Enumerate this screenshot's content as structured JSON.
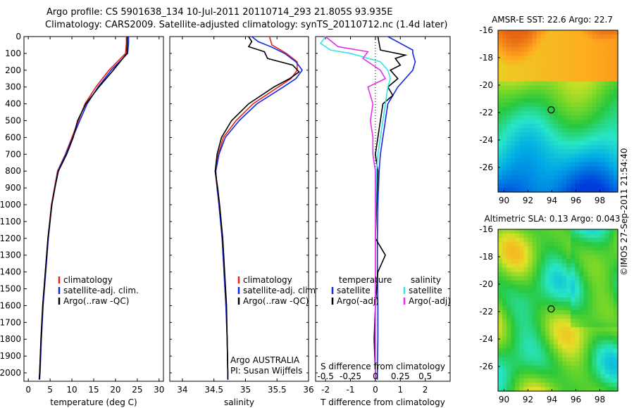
{
  "header": {
    "line1": "Argo profile: CS 5901638_134 10-Jul-2011 20110714_293 21.805S 93.935E",
    "line2": "Climatology: CARS2009. Satellite-adjusted climatology: synTS_20110712.nc (1.4d later)"
  },
  "footer_stamp": "©IMOS 27-Sep-2011 21:54:40",
  "colors": {
    "climatology": "#e8231c",
    "satellite": "#1428e0",
    "argo": "#000000",
    "salinity_satellite": "#33e6e6",
    "salinity_argo": "#e62ee6"
  },
  "chart_data": [
    {
      "type": "line",
      "id": "temperature",
      "xlabel": "temperature (deg C)",
      "ylabel": "",
      "xlim": [
        -1,
        31
      ],
      "ylim": [
        2050,
        0
      ],
      "xticks": [
        "0",
        "5",
        "10",
        "15",
        "20",
        "25",
        "30"
      ],
      "yticks": [
        "0",
        "100",
        "200",
        "300",
        "400",
        "500",
        "600",
        "700",
        "800",
        "900",
        "1000",
        "1100",
        "1200",
        "1300",
        "1400",
        "1500",
        "1600",
        "1700",
        "1800",
        "1900",
        "2000"
      ],
      "legend": [
        "climatology",
        "satellite-adj. clim.",
        "Argo(..raw -QC)"
      ],
      "series": [
        {
          "name": "climatology",
          "depth": [
            0,
            40,
            100,
            200,
            300,
            400,
            500,
            600,
            700,
            800,
            900,
            1000,
            1200,
            1400,
            1600,
            1800,
            2000,
            2040
          ],
          "values": [
            22.5,
            22.5,
            22.3,
            18.5,
            15.5,
            13.0,
            11.5,
            10.0,
            8.5,
            6.7,
            6.0,
            5.3,
            4.5,
            3.9,
            3.3,
            2.9,
            2.6,
            2.5
          ]
        },
        {
          "name": "satellite-adj. clim.",
          "depth": [
            0,
            40,
            100,
            200,
            300,
            400,
            500,
            600,
            700,
            800,
            900,
            1000,
            1200,
            1400,
            1600,
            1800,
            2000,
            2040
          ],
          "values": [
            23.0,
            23.0,
            22.8,
            19.0,
            16.0,
            13.5,
            11.8,
            10.2,
            8.6,
            6.8,
            6.1,
            5.4,
            4.6,
            4.0,
            3.4,
            3.0,
            2.7,
            2.6
          ]
        },
        {
          "name": "Argo(..raw -QC)",
          "depth": [
            0,
            40,
            100,
            200,
            300,
            400,
            500,
            600,
            700,
            800,
            900,
            1000,
            1200,
            1400,
            1600,
            1800,
            2000,
            2040
          ],
          "values": [
            22.7,
            22.7,
            22.6,
            19.5,
            16.2,
            13.2,
            11.3,
            10.3,
            8.8,
            6.9,
            6.1,
            5.4,
            4.5,
            3.9,
            3.3,
            2.9,
            2.6,
            2.5
          ]
        }
      ]
    },
    {
      "type": "line",
      "id": "salinity",
      "xlabel": "salinity",
      "ylabel": "",
      "xlim": [
        33.8,
        36.0
      ],
      "ylim": [
        2050,
        0
      ],
      "xticks": [
        "34",
        "34.5",
        "35",
        "35.5",
        "36"
      ],
      "legend": [
        "climatology",
        "satellite-adj. clim.",
        "Argo(..raw -QC)"
      ],
      "annotation": [
        "Argo AUSTRALIA",
        "PI: Susan Wijffels"
      ],
      "series": [
        {
          "name": "climatology",
          "depth": [
            0,
            50,
            100,
            150,
            200,
            250,
            300,
            400,
            500,
            600,
            700,
            800,
            900,
            1000,
            1200,
            1400,
            1600,
            1800,
            2000,
            2040
          ],
          "values": [
            35.38,
            35.42,
            35.65,
            35.82,
            35.82,
            35.72,
            35.52,
            35.12,
            34.85,
            34.65,
            34.57,
            34.52,
            34.55,
            34.58,
            34.63,
            34.66,
            34.69,
            34.71,
            34.72,
            34.72
          ]
        },
        {
          "name": "satellite-adj. clim.",
          "depth": [
            0,
            30,
            60,
            100,
            150,
            200,
            250,
            300,
            400,
            500,
            600,
            700,
            800,
            900,
            1000,
            1200,
            1400,
            1600,
            1800,
            2000,
            2040
          ],
          "values": [
            35.1,
            35.2,
            35.4,
            35.62,
            35.8,
            35.9,
            35.8,
            35.6,
            35.18,
            34.9,
            34.68,
            34.58,
            34.53,
            34.55,
            34.58,
            34.63,
            34.66,
            34.69,
            34.71,
            34.72,
            34.72
          ]
        },
        {
          "name": "Argo(..raw -QC)",
          "depth": [
            0,
            30,
            60,
            90,
            130,
            170,
            210,
            250,
            300,
            400,
            500,
            600,
            700,
            800,
            900,
            1000,
            1200,
            1400,
            1600,
            1800,
            2000,
            2040
          ],
          "values": [
            35.05,
            35.1,
            35.05,
            35.3,
            35.35,
            35.75,
            35.85,
            35.7,
            35.45,
            35.05,
            34.78,
            34.62,
            34.55,
            34.52,
            34.56,
            34.59,
            34.64,
            34.67,
            34.7,
            34.71,
            34.72,
            34.72
          ]
        }
      ]
    },
    {
      "type": "line",
      "id": "difference",
      "xlabel": "T difference from climatology",
      "xlabel2": "S difference from climatology",
      "xlim": [
        -2.4,
        3.0
      ],
      "ylim": [
        2050,
        0
      ],
      "xticks": [
        "-2",
        "-1",
        "0",
        "1",
        "2"
      ],
      "xticks_top": [
        "-0.5",
        "-0.25",
        "0",
        "0.25",
        "0.5"
      ],
      "legend_temperature": {
        "title": "temperature",
        "items": [
          "satellite",
          "Argo(-adj)"
        ]
      },
      "legend_salinity": {
        "title": "salinity",
        "items": [
          "satellite",
          "Argo(-adj)"
        ]
      },
      "series": [
        {
          "name": "satellite",
          "quantity": "temperature",
          "depth": [
            0,
            40,
            80,
            100,
            150,
            200,
            250,
            300,
            400,
            500,
            600,
            700,
            800,
            1000,
            1200,
            1400,
            1600,
            1800,
            2000,
            2040
          ],
          "values": [
            0.5,
            1.0,
            1.5,
            1.5,
            1.6,
            1.5,
            1.2,
            0.9,
            0.5,
            0.4,
            0.3,
            0.2,
            0.15,
            0.1,
            0.08,
            0.08,
            0.1,
            0.1,
            0.08,
            0.08
          ]
        },
        {
          "name": "Argo(-adj)",
          "quantity": "temperature",
          "depth": [
            0,
            80,
            110,
            130,
            170,
            200,
            250,
            300,
            350,
            400,
            500,
            600,
            700,
            800,
            1000,
            1200,
            1300,
            1400,
            1600,
            1800,
            2000,
            2040
          ],
          "values": [
            0.1,
            0.2,
            1.2,
            0.8,
            1.0,
            0.6,
            0.9,
            0.5,
            0.7,
            0.3,
            0.2,
            0.1,
            0.0,
            0.1,
            0.05,
            0.0,
            0.4,
            0.1,
            0.0,
            -0.05,
            0.0,
            0.0
          ]
        },
        {
          "name": "satellite",
          "quantity": "salinity",
          "depth": [
            0,
            40,
            80,
            100,
            150,
            200,
            250,
            300,
            400,
            500,
            600,
            700,
            800,
            1000,
            1200,
            1400,
            1600,
            1800,
            2000,
            2040
          ],
          "values": [
            -2.0,
            -2.2,
            -1.8,
            -1.0,
            0.2,
            0.5,
            0.6,
            0.5,
            0.4,
            0.3,
            0.2,
            0.1,
            0.05,
            0.02,
            0.0,
            0.0,
            0.0,
            0.0,
            0.0,
            0.0
          ]
        },
        {
          "name": "Argo(-adj)",
          "quantity": "salinity",
          "depth": [
            0,
            60,
            90,
            130,
            170,
            200,
            250,
            300,
            400,
            500,
            600,
            700,
            800,
            1000,
            1200,
            1400,
            1600,
            1800,
            2000,
            2040
          ],
          "values": [
            -2.0,
            -1.5,
            -0.3,
            -0.5,
            -0.1,
            0.2,
            0.4,
            -0.3,
            -0.1,
            -0.2,
            -0.1,
            -0.1,
            0.0,
            0.0,
            0.0,
            0.0,
            0.0,
            0.0,
            0.0,
            0.0
          ]
        }
      ]
    },
    {
      "type": "heatmap",
      "id": "sst_map",
      "title": "AMSR-E SST: 22.6 Argo: 22.7",
      "xlim": [
        89.5,
        99.5
      ],
      "ylim": [
        -27.8,
        -16
      ],
      "xticks": [
        "90",
        "92",
        "94",
        "96",
        "98"
      ],
      "yticks": [
        "-16",
        "-18",
        "-20",
        "-22",
        "-24",
        "-26"
      ],
      "marker": {
        "lon": 93.935,
        "lat": -21.805
      }
    },
    {
      "type": "heatmap",
      "id": "sla_map",
      "title": "Altimetric SLA: 0.13 Argo: 0.043",
      "xlim": [
        89.5,
        99.5
      ],
      "ylim": [
        -27.8,
        -16
      ],
      "xticks": [
        "90",
        "92",
        "94",
        "96",
        "98"
      ],
      "yticks": [
        "-16",
        "-18",
        "-20",
        "-22",
        "-24",
        "-26"
      ],
      "marker": {
        "lon": 93.935,
        "lat": -21.805
      }
    }
  ]
}
